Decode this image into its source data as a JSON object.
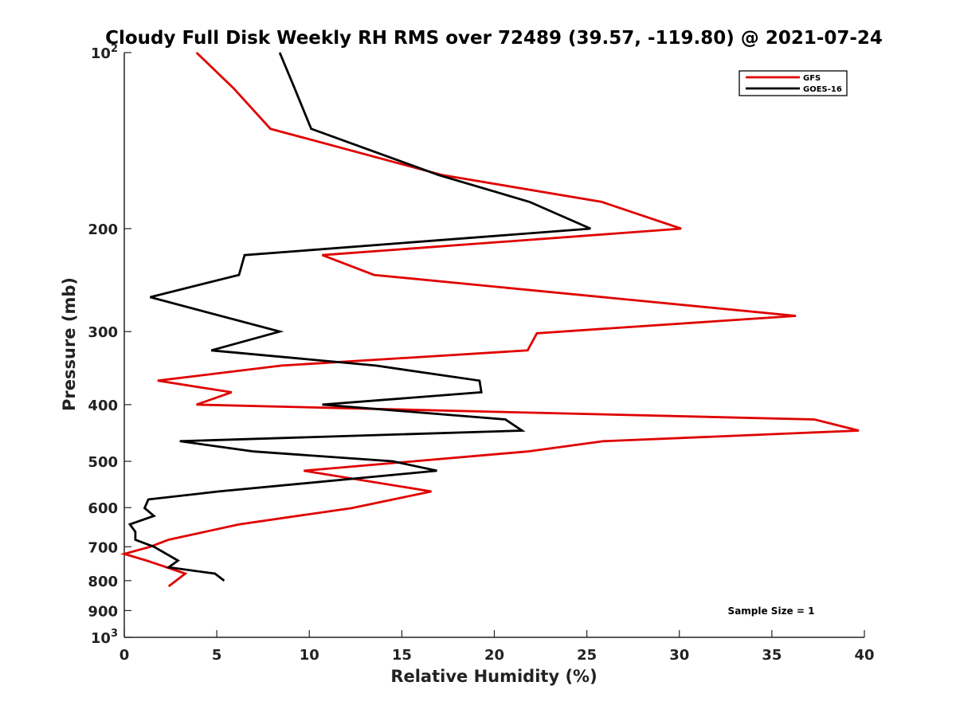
{
  "chart_data": {
    "type": "line",
    "title": "Cloudy Full Disk Weekly RH RMS over 72489 (39.57, -119.80) @ 2021-07-24",
    "xlabel": "Relative Humidity (%)",
    "ylabel": "Pressure (mb)",
    "xlim": [
      0,
      40
    ],
    "ylim": [
      1000,
      100
    ],
    "y_scale": "log",
    "y_inverted": true,
    "grid": false,
    "legend_position": "top-right",
    "x_ticks": [
      "0",
      "5",
      "10",
      "15",
      "20",
      "25",
      "30",
      "35",
      "40"
    ],
    "y_ticks": [
      {
        "value": 100,
        "base": "10",
        "exp": "2"
      },
      {
        "value": 200,
        "label": "200"
      },
      {
        "value": 300,
        "label": "300"
      },
      {
        "value": 400,
        "label": "400"
      },
      {
        "value": 500,
        "label": "500"
      },
      {
        "value": 600,
        "label": "600"
      },
      {
        "value": 700,
        "label": "700"
      },
      {
        "value": 800,
        "label": "800"
      },
      {
        "value": 900,
        "label": "900"
      },
      {
        "value": 1000,
        "base": "10",
        "exp": "3"
      }
    ],
    "series": [
      {
        "name": "GFS",
        "color": "#e00000",
        "points": [
          [
            3.9,
            100
          ],
          [
            5.9,
            115
          ],
          [
            7.9,
            135
          ],
          [
            17.2,
            162
          ],
          [
            25.8,
            180
          ],
          [
            30.1,
            200
          ],
          [
            10.7,
            222
          ],
          [
            13.5,
            240
          ],
          [
            36.3,
            282
          ],
          [
            22.3,
            302
          ],
          [
            21.8,
            323
          ],
          [
            8.5,
            343
          ],
          [
            1.8,
            364
          ],
          [
            5.8,
            381
          ],
          [
            3.9,
            400
          ],
          [
            37.3,
            424
          ],
          [
            39.7,
            443
          ],
          [
            25.9,
            462
          ],
          [
            21.8,
            481
          ],
          [
            9.7,
            519
          ],
          [
            16.6,
            563
          ],
          [
            12.3,
            601
          ],
          [
            6.2,
            641
          ],
          [
            2.4,
            681
          ],
          [
            1.4,
            700
          ],
          [
            0.0,
            720
          ],
          [
            1.2,
            739
          ],
          [
            3.3,
            778
          ],
          [
            2.4,
            818
          ]
        ]
      },
      {
        "name": "GOES-16",
        "color": "#000000",
        "points": [
          [
            8.4,
            100
          ],
          [
            9.2,
            115
          ],
          [
            10.1,
            135
          ],
          [
            17.0,
            162
          ],
          [
            21.9,
            180
          ],
          [
            25.2,
            200
          ],
          [
            6.5,
            222
          ],
          [
            6.2,
            240
          ],
          [
            1.4,
            262
          ],
          [
            8.4,
            300
          ],
          [
            4.7,
            323
          ],
          [
            13.6,
            343
          ],
          [
            19.2,
            364
          ],
          [
            19.3,
            381
          ],
          [
            10.7,
            400
          ],
          [
            20.6,
            424
          ],
          [
            21.5,
            443
          ],
          [
            3.0,
            462
          ],
          [
            7.0,
            481
          ],
          [
            14.5,
            500
          ],
          [
            16.9,
            519
          ],
          [
            5.1,
            563
          ],
          [
            1.3,
            581
          ],
          [
            1.1,
            601
          ],
          [
            1.6,
            620
          ],
          [
            0.3,
            641
          ],
          [
            0.6,
            660
          ],
          [
            0.6,
            681
          ],
          [
            1.6,
            700
          ],
          [
            2.9,
            739
          ],
          [
            2.4,
            759
          ],
          [
            4.9,
            778
          ],
          [
            5.4,
            800
          ]
        ]
      }
    ],
    "annotation": "Sample Size = 1"
  }
}
